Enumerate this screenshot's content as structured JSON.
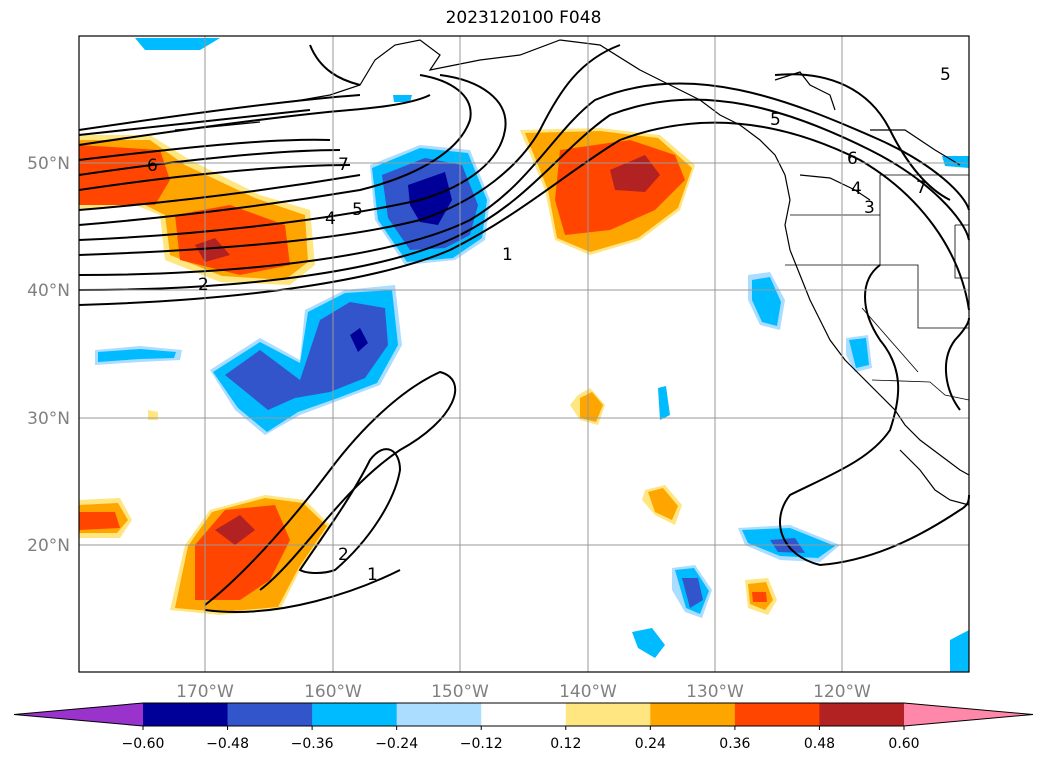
{
  "title": "2023120100 F048",
  "map": {
    "region": "North Pacific / western North America",
    "lat_labels": [
      "50°N",
      "40°N",
      "30°N",
      "20°N"
    ],
    "lon_labels": [
      "170°W",
      "160°W",
      "150°W",
      "140°W",
      "130°W",
      "120°W"
    ],
    "grid": true,
    "contour_labels": [
      "6",
      "7",
      "5",
      "4",
      "2",
      "1",
      "5",
      "6",
      "4",
      "3",
      "7",
      "5",
      "2",
      "1"
    ]
  },
  "colorbar": {
    "labels": [
      "−0.60",
      "−0.48",
      "−0.36",
      "−0.24",
      "−0.12",
      "0.12",
      "0.24",
      "0.36",
      "0.48",
      "0.60"
    ],
    "colors": [
      "#9933cc",
      "#000099",
      "#3355cc",
      "#00bbff",
      "#aaddff",
      "#ffffff",
      "#ffe680",
      "#ffa500",
      "#ff4500",
      "#b22222",
      "#ff88aa"
    ],
    "extend": "both"
  }
}
